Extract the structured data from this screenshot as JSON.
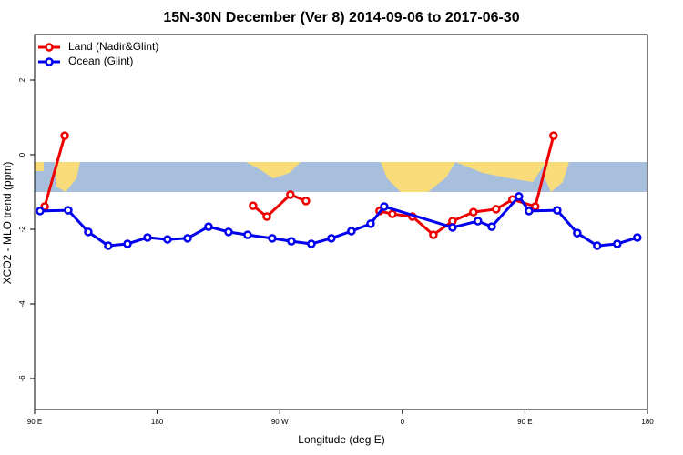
{
  "chart_data": {
    "type": "line",
    "title": "15N-30N December (Ver 8)   2014-09-06 to 2017-06-30",
    "xlabel": "Longitude (deg E)",
    "ylabel": "XCO2 - MLO trend (ppm)",
    "xlim": [
      90,
      540
    ],
    "ylim": [
      -6.83,
      3.22
    ],
    "xticks": [
      {
        "value": 90,
        "label": "90 E"
      },
      {
        "value": 180,
        "label": "180"
      },
      {
        "value": 270,
        "label": "90 W"
      },
      {
        "value": 360,
        "label": "0"
      },
      {
        "value": 450,
        "label": "90 E"
      },
      {
        "value": 540,
        "label": "180"
      }
    ],
    "yticks": [
      2,
      0,
      -2,
      -4,
      -6
    ],
    "legend": "top-left",
    "series": [
      {
        "name": "Land (Nadir&Glint)",
        "color": "#ee0000",
        "x": [
          97.4,
          112.1,
          null,
          250.4,
          260.5,
          277.8,
          289.2,
          null,
          343.3,
          352.7,
          367.4,
          382.8,
          396.8,
          412.2,
          428.9,
          440.9,
          457.6,
          471.0
        ],
        "values": [
          -1.39,
          0.51,
          null,
          -1.37,
          -1.66,
          -1.07,
          -1.24,
          null,
          -1.51,
          -1.59,
          -1.66,
          -2.15,
          -1.78,
          -1.54,
          -1.46,
          -1.2,
          -1.39,
          0.51
        ]
      },
      {
        "name": "Ocean (Glint)",
        "color": "#0000ee",
        "x": [
          94.0,
          114.7,
          129.4,
          144.1,
          158.2,
          172.9,
          187.6,
          202.3,
          217.7,
          232.4,
          246.4,
          264.5,
          278.5,
          293.2,
          307.9,
          322.6,
          336.7,
          346.7,
          396.8,
          415.5,
          425.6,
          445.6,
          453.0,
          473.7,
          488.4,
          503.1,
          517.8,
          532.5
        ],
        "values": [
          -1.51,
          -1.49,
          -2.07,
          -2.44,
          -2.39,
          -2.22,
          -2.27,
          -2.24,
          -1.93,
          -2.07,
          -2.15,
          -2.24,
          -2.32,
          -2.39,
          -2.24,
          -2.05,
          -1.85,
          -1.39,
          -1.95,
          -1.78,
          -1.93,
          -1.12,
          -1.51,
          -1.49,
          -2.1,
          -2.44,
          -2.39,
          -2.22
        ]
      }
    ]
  }
}
